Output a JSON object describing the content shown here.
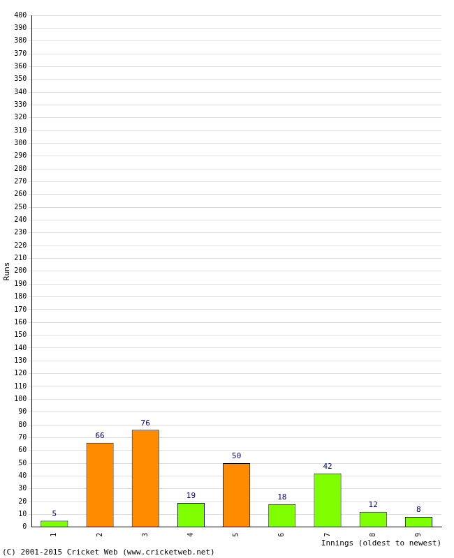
{
  "chart_data": {
    "type": "bar",
    "x_label": "Innings (oldest to newest)",
    "y_label": "Runs",
    "annotations": [
      "(C) 2001-2015 Cricket Web (www.cricketweb.net)"
    ],
    "categories": [
      "1",
      "2",
      "3",
      "4",
      "5",
      "6",
      "7",
      "8",
      "9"
    ],
    "values": [
      5,
      66,
      76,
      19,
      50,
      18,
      42,
      12,
      8
    ],
    "colors": [
      "#80ff00",
      "#ff8c00",
      "#ff8c00",
      "#80ff00",
      "#ff8c00",
      "#80ff00",
      "#80ff00",
      "#80ff00",
      "#80ff00"
    ],
    "ylim": [
      0,
      400
    ],
    "yticks": [
      0,
      10,
      20,
      30,
      40,
      50,
      60,
      70,
      80,
      90,
      100,
      110,
      120,
      130,
      140,
      150,
      160,
      170,
      180,
      190,
      200,
      210,
      220,
      230,
      240,
      250,
      260,
      270,
      280,
      290,
      300,
      310,
      320,
      330,
      340,
      350,
      360,
      370,
      380,
      390,
      400
    ],
    "grid": true,
    "data_labels": true
  }
}
